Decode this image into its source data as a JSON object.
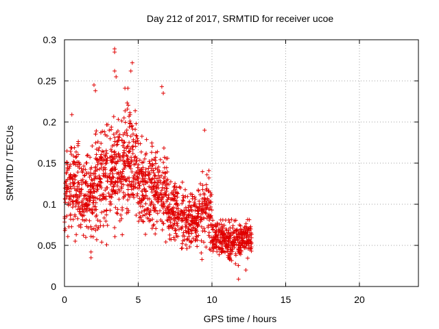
{
  "chart_data": {
    "type": "scatter",
    "title": "Day 212 of 2017, SRMTID for receiver ucoe",
    "xlabel": "GPS time / hours",
    "ylabel": "SRMTID / TECUs",
    "xlim": [
      0,
      24
    ],
    "ylim": [
      0,
      0.3
    ],
    "xticks": [
      "0",
      "5",
      "10",
      "15",
      "20"
    ],
    "yticks": [
      "0",
      "0.05",
      "0.1",
      "0.15",
      "0.2",
      "0.25",
      "0.3"
    ],
    "grid": true,
    "marker": "+",
    "color": "#e00000",
    "series": [
      {
        "name": "SRMTID",
        "segments": [
          {
            "x_start": 0.0,
            "x_end": 1.0,
            "y_low": 0.05,
            "y_high": 0.2,
            "count": 140
          },
          {
            "x_start": 1.0,
            "x_end": 2.0,
            "y_low": 0.04,
            "y_high": 0.18,
            "count": 140
          },
          {
            "x_start": 2.0,
            "x_end": 3.0,
            "y_low": 0.04,
            "y_high": 0.22,
            "count": 140
          },
          {
            "x_start": 3.0,
            "x_end": 4.0,
            "y_low": 0.05,
            "y_high": 0.23,
            "count": 150
          },
          {
            "x_start": 4.0,
            "x_end": 5.0,
            "y_low": 0.06,
            "y_high": 0.24,
            "count": 150
          },
          {
            "x_start": 5.0,
            "x_end": 6.0,
            "y_low": 0.05,
            "y_high": 0.2,
            "count": 140
          },
          {
            "x_start": 6.0,
            "x_end": 7.0,
            "y_low": 0.04,
            "y_high": 0.19,
            "count": 140
          },
          {
            "x_start": 7.0,
            "x_end": 8.0,
            "y_low": 0.04,
            "y_high": 0.14,
            "count": 130
          },
          {
            "x_start": 8.0,
            "x_end": 9.0,
            "y_low": 0.03,
            "y_high": 0.13,
            "count": 130
          },
          {
            "x_start": 9.0,
            "x_end": 10.0,
            "y_low": 0.03,
            "y_high": 0.15,
            "count": 120
          },
          {
            "x_start": 10.0,
            "x_end": 11.0,
            "y_low": 0.03,
            "y_high": 0.09,
            "count": 130
          },
          {
            "x_start": 11.0,
            "x_end": 12.0,
            "y_low": 0.02,
            "y_high": 0.09,
            "count": 130
          },
          {
            "x_start": 12.0,
            "x_end": 12.7,
            "y_low": 0.03,
            "y_high": 0.09,
            "count": 90
          }
        ],
        "notable_points": [
          {
            "x": 3.4,
            "y": 0.289
          },
          {
            "x": 3.4,
            "y": 0.285
          },
          {
            "x": 4.6,
            "y": 0.272
          },
          {
            "x": 4.5,
            "y": 0.262
          },
          {
            "x": 3.4,
            "y": 0.262
          },
          {
            "x": 3.5,
            "y": 0.255
          },
          {
            "x": 6.6,
            "y": 0.243
          },
          {
            "x": 2.0,
            "y": 0.245
          },
          {
            "x": 2.1,
            "y": 0.238
          },
          {
            "x": 4.1,
            "y": 0.241
          },
          {
            "x": 6.7,
            "y": 0.235
          },
          {
            "x": 4.3,
            "y": 0.241
          },
          {
            "x": 9.5,
            "y": 0.19
          },
          {
            "x": 0.5,
            "y": 0.209
          },
          {
            "x": 2.5,
            "y": 0.12
          },
          {
            "x": 11.8,
            "y": 0.009
          },
          {
            "x": 1.8,
            "y": 0.035
          },
          {
            "x": 1.8,
            "y": 0.042
          },
          {
            "x": 12.3,
            "y": 0.02
          }
        ]
      }
    ]
  }
}
